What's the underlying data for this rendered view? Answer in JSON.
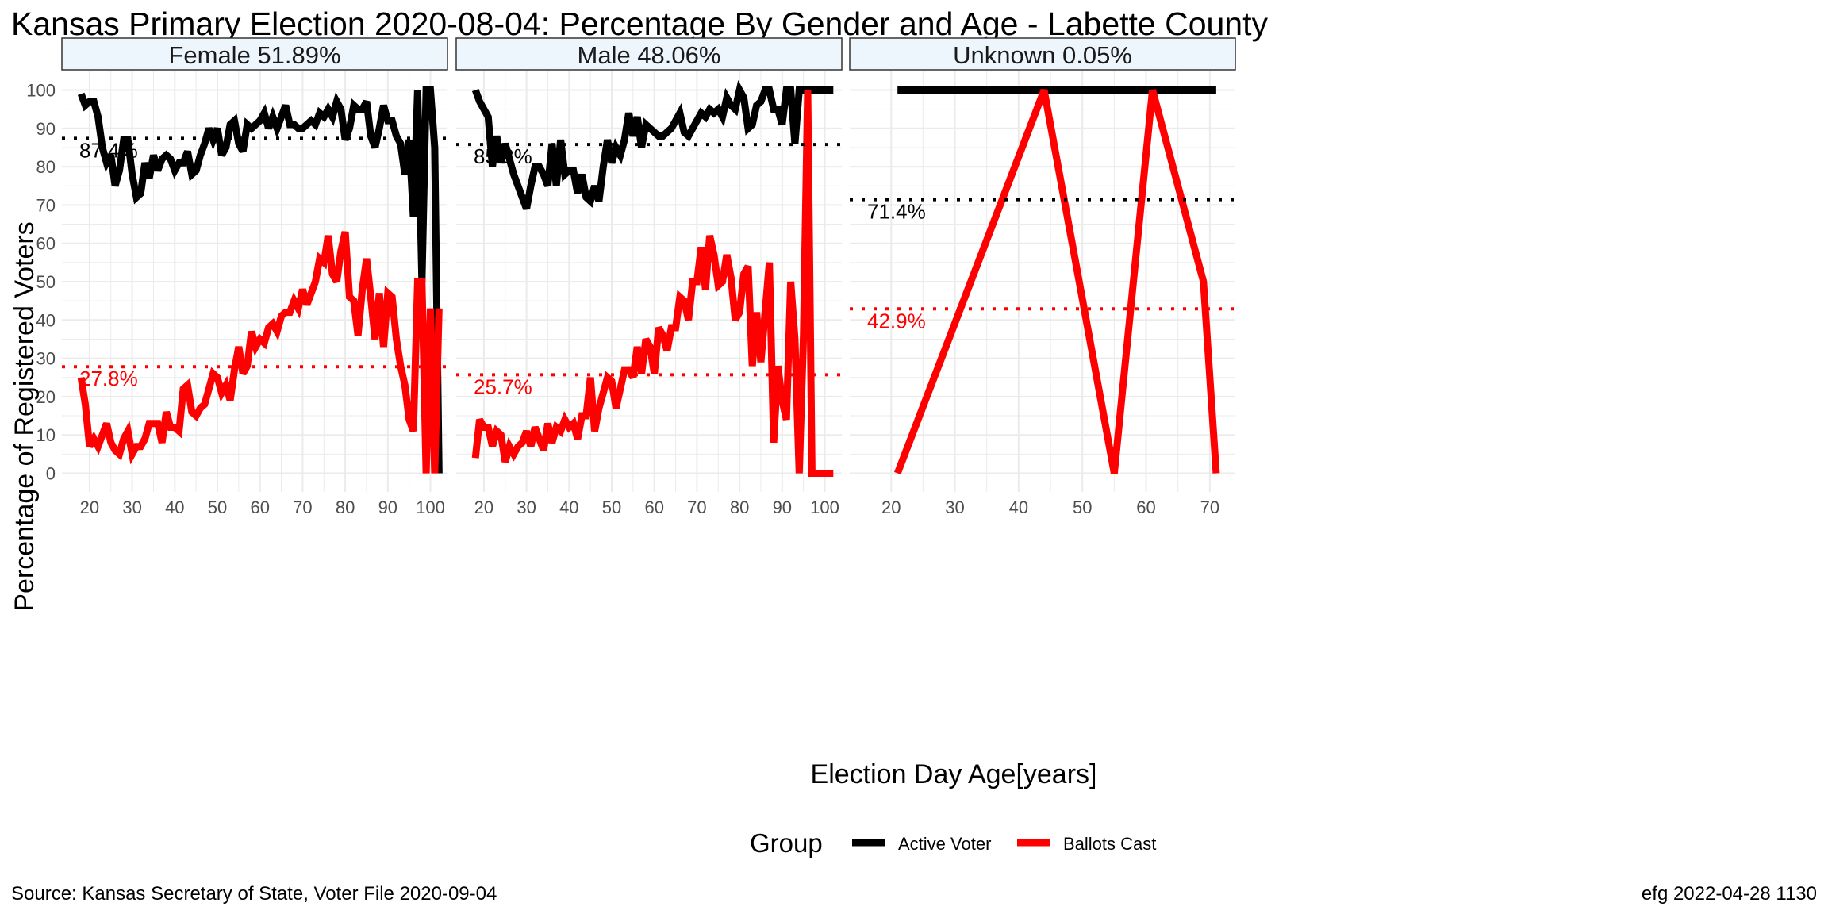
{
  "title": "Kansas Primary Election 2020-08-04:  Percentage By Gender and Age - Labette County",
  "source": "Source:  Kansas Secretary of State, Voter File  2020-09-04",
  "stamp": "efg 2022-04-28 1130",
  "colors": {
    "active": "#000000",
    "ballots": "#ff0000",
    "strip_fill": "#eef6fd",
    "grid": "#ebebeb",
    "axis_text": "#4d4d4d"
  },
  "chart_data": {
    "type": "line",
    "xlabel": "Election Day Age[years]",
    "ylabel": "Percentage of Registered Voters",
    "ylim": [
      0,
      100
    ],
    "yticks": [
      0,
      10,
      20,
      30,
      40,
      50,
      60,
      70,
      80,
      90,
      100
    ],
    "grid": true,
    "legend": {
      "title": "Group",
      "position": "bottom",
      "entries": [
        "Active Voter",
        "Ballots Cast"
      ]
    },
    "panels": [
      {
        "label": "Female 51.89%",
        "xlim": [
          13.5,
          104
        ],
        "xticks": [
          20,
          30,
          40,
          50,
          60,
          70,
          80,
          90,
          100
        ],
        "active_mean": 87.4,
        "active_mean_label": "87.4%",
        "ballots_mean": 27.8,
        "ballots_mean_label": "27.8%",
        "series": [
          {
            "name": "Active Voter",
            "x": [
              18,
              19,
              20,
              21,
              22,
              23,
              24,
              25,
              26,
              27,
              28,
              29,
              30,
              31,
              32,
              33,
              34,
              35,
              36,
              37,
              38,
              39,
              40,
              41,
              42,
              43,
              44,
              45,
              46,
              47,
              48,
              49,
              50,
              51,
              52,
              53,
              54,
              55,
              56,
              57,
              58,
              59,
              60,
              61,
              62,
              63,
              64,
              65,
              66,
              67,
              68,
              69,
              70,
              71,
              72,
              73,
              74,
              75,
              76,
              77,
              78,
              79,
              80,
              81,
              82,
              83,
              84,
              85,
              86,
              87,
              88,
              89,
              90,
              91,
              92,
              93,
              94,
              95,
              96,
              97,
              98,
              99,
              100,
              101,
              102
            ],
            "y": [
              99,
              96,
              97,
              97,
              93,
              85,
              81,
              83,
              75,
              79,
              87,
              87,
              78,
              72,
              73,
              81,
              77,
              83,
              79,
              82,
              83,
              82,
              79,
              81,
              81,
              84,
              78,
              79,
              83,
              86,
              90,
              87,
              90,
              83,
              85,
              91,
              92,
              86,
              84,
              91,
              90,
              91,
              92,
              94,
              90,
              93,
              90,
              93,
              96,
              91,
              91,
              90,
              90,
              91,
              92,
              91,
              94,
              93,
              95,
              93,
              97,
              95,
              87,
              90,
              96,
              95,
              95,
              97,
              88,
              85,
              90,
              96,
              92,
              92,
              88,
              86,
              78,
              87,
              67,
              100,
              50,
              100,
              100,
              85,
              0
            ]
          },
          {
            "name": "Ballots Cast",
            "x": [
              18,
              19,
              20,
              21,
              22,
              23,
              24,
              25,
              26,
              27,
              28,
              29,
              30,
              31,
              32,
              33,
              34,
              35,
              36,
              37,
              38,
              39,
              40,
              41,
              42,
              43,
              44,
              45,
              46,
              47,
              48,
              49,
              50,
              51,
              52,
              53,
              54,
              55,
              56,
              57,
              58,
              59,
              60,
              61,
              62,
              63,
              64,
              65,
              66,
              67,
              68,
              69,
              70,
              71,
              72,
              73,
              74,
              75,
              76,
              77,
              78,
              79,
              80,
              81,
              82,
              83,
              84,
              85,
              86,
              87,
              88,
              89,
              90,
              91,
              92,
              93,
              94,
              95,
              96,
              97,
              98,
              99,
              100,
              101,
              102
            ],
            "y": [
              25,
              18,
              7,
              9,
              7,
              10,
              13,
              8,
              6,
              5,
              9,
              11,
              5,
              7,
              7,
              9,
              13,
              13,
              13,
              8,
              16,
              12,
              12,
              11,
              22,
              23,
              16,
              15,
              17,
              18,
              22,
              26,
              25,
              21,
              23,
              19,
              27,
              33,
              26,
              28,
              37,
              33,
              35,
              34,
              38,
              39,
              37,
              41,
              42,
              42,
              45,
              43,
              48,
              44,
              47,
              50,
              56,
              55,
              62,
              52,
              50,
              58,
              63,
              46,
              45,
              36,
              48,
              56,
              46,
              35,
              47,
              33,
              47,
              46,
              35,
              28,
              23,
              14,
              11,
              50,
              50,
              0,
              43,
              0,
              43
            ]
          }
        ]
      },
      {
        "label": "Male 48.06%",
        "xlim": [
          13.5,
          104
        ],
        "xticks": [
          20,
          30,
          40,
          50,
          60,
          70,
          80,
          90,
          100
        ],
        "active_mean": 85.8,
        "active_mean_label": "85.8%",
        "ballots_mean": 25.7,
        "ballots_mean_label": "25.7%",
        "series": [
          {
            "name": "Active Voter",
            "x": [
              18,
              19,
              20,
              21,
              22,
              23,
              24,
              25,
              26,
              27,
              28,
              29,
              30,
              31,
              32,
              33,
              34,
              35,
              36,
              37,
              38,
              39,
              40,
              41,
              42,
              43,
              44,
              45,
              46,
              47,
              48,
              49,
              50,
              51,
              52,
              53,
              54,
              55,
              56,
              57,
              58,
              59,
              60,
              61,
              62,
              63,
              64,
              65,
              66,
              67,
              68,
              69,
              70,
              71,
              72,
              73,
              74,
              75,
              76,
              77,
              78,
              79,
              80,
              81,
              82,
              83,
              84,
              85,
              86,
              87,
              88,
              89,
              90,
              91,
              92,
              93,
              94,
              95,
              96,
              97,
              98,
              99,
              100,
              101,
              102
            ],
            "y": [
              100,
              97,
              95,
              93,
              80,
              88,
              81,
              86,
              82,
              78,
              75,
              72,
              69,
              75,
              80,
              80,
              78,
              75,
              86,
              75,
              87,
              78,
              79,
              79,
              73,
              78,
              72,
              71,
              75,
              71,
              80,
              87,
              81,
              85,
              83,
              87,
              94,
              88,
              93,
              85,
              91,
              90,
              89,
              88,
              88,
              89,
              90,
              92,
              94,
              89,
              88,
              90,
              92,
              94,
              93,
              95,
              94,
              95,
              93,
              98,
              96,
              95,
              100,
              98,
              90,
              91,
              96,
              97,
              100,
              100,
              95,
              95,
              91,
              100,
              100,
              86,
              100,
              100,
              100,
              100,
              100,
              100,
              100,
              100,
              100
            ]
          },
          {
            "name": "Ballots Cast",
            "x": [
              18,
              19,
              20,
              21,
              22,
              23,
              24,
              25,
              26,
              27,
              28,
              29,
              30,
              31,
              32,
              33,
              34,
              35,
              36,
              37,
              38,
              39,
              40,
              41,
              42,
              43,
              44,
              45,
              46,
              47,
              48,
              49,
              50,
              51,
              52,
              53,
              54,
              55,
              56,
              57,
              58,
              59,
              60,
              61,
              62,
              63,
              64,
              65,
              66,
              67,
              68,
              69,
              70,
              71,
              72,
              73,
              74,
              75,
              76,
              77,
              78,
              79,
              80,
              81,
              82,
              83,
              84,
              85,
              86,
              87,
              88,
              89,
              90,
              91,
              92,
              93,
              94,
              95,
              96,
              97,
              98,
              99,
              100,
              101,
              102
            ],
            "y": [
              4,
              14,
              12,
              12,
              7,
              11,
              10,
              3,
              7,
              5,
              7,
              8,
              11,
              7,
              12,
              9,
              6,
              13,
              8,
              12,
              11,
              14,
              12,
              13,
              9,
              15,
              15,
              25,
              11,
              17,
              21,
              25,
              24,
              17,
              22,
              27,
              27,
              25,
              33,
              26,
              35,
              33,
              26,
              38,
              36,
              32,
              38,
              38,
              46,
              45,
              40,
              50,
              50,
              59,
              48,
              62,
              57,
              49,
              50,
              57,
              51,
              40,
              42,
              52,
              54,
              28,
              42,
              29,
              42,
              55,
              8,
              28,
              19,
              14,
              50,
              35,
              0,
              36,
              100,
              0,
              0,
              0,
              0,
              0,
              0
            ]
          }
        ]
      },
      {
        "label": "Unknown 0.05%",
        "xlim": [
          13.5,
          74
        ],
        "xticks": [
          20,
          30,
          40,
          50,
          60,
          70
        ],
        "active_mean": 71.4,
        "active_mean_label": "71.4%",
        "ballots_mean": 42.9,
        "ballots_mean_label": "42.9%",
        "series": [
          {
            "name": "Active Voter",
            "x": [
              21,
              44,
              55,
              61,
              69,
              71
            ],
            "y": [
              100,
              100,
              100,
              100,
              100,
              100
            ]
          },
          {
            "name": "Ballots Cast",
            "x": [
              21,
              44,
              55,
              61,
              69,
              71
            ],
            "y": [
              0,
              100,
              0,
              100,
              50,
              0
            ]
          }
        ]
      }
    ]
  }
}
